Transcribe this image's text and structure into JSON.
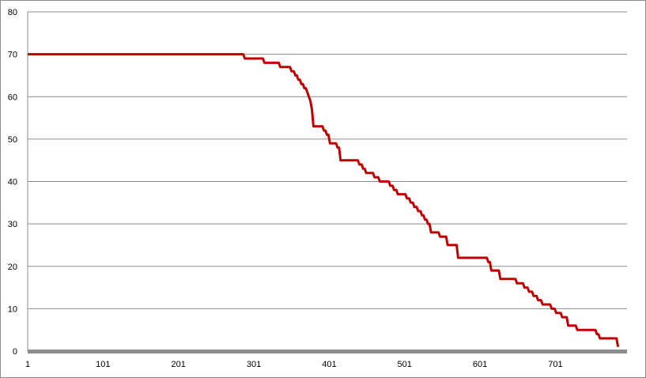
{
  "chart_data": {
    "type": "line",
    "title": "",
    "xlabel": "",
    "ylabel": "",
    "xlim": [
      1,
      796
    ],
    "ylim": [
      0,
      80
    ],
    "y_ticks": [
      "0",
      "10",
      "20",
      "30",
      "40",
      "50",
      "60",
      "70",
      "80"
    ],
    "x_ticks": [
      "1",
      "101",
      "201",
      "301",
      "401",
      "501",
      "601",
      "701"
    ],
    "grid": "horizontal",
    "legend": "none",
    "line_color": "#c00000",
    "series": [
      {
        "x": [
          1,
          287,
          289,
          313,
          315,
          334,
          336,
          349,
          351,
          354,
          356,
          358,
          360,
          362,
          364,
          366,
          368,
          370,
          372,
          374,
          376,
          378,
          380,
          392,
          394,
          396,
          398,
          400,
          402,
          410,
          412,
          414,
          416,
          418,
          420,
          439,
          441,
          444,
          446,
          448,
          450,
          459,
          461,
          466,
          468,
          480,
          482,
          485,
          487,
          490,
          492,
          502,
          504,
          507,
          509,
          512,
          514,
          517,
          519,
          522,
          524,
          526,
          528,
          530,
          532,
          534,
          536,
          546,
          548,
          556,
          558,
          570,
          572,
          610,
          612,
          614,
          616,
          626,
          628,
          648,
          650,
          658,
          660,
          664,
          666,
          670,
          672,
          676,
          678,
          682,
          684,
          694,
          696,
          700,
          702,
          708,
          710,
          716,
          718,
          728,
          730,
          754,
          756,
          758,
          760,
          782,
          784
        ],
        "y": [
          70,
          70,
          69,
          69,
          68,
          68,
          67,
          67,
          66,
          66,
          65,
          65,
          64,
          64,
          63,
          63,
          62,
          62,
          61,
          60,
          59,
          57,
          53,
          53,
          52,
          52,
          51,
          51,
          49,
          49,
          48,
          48,
          45,
          45,
          45,
          45,
          44,
          44,
          43,
          43,
          42,
          42,
          41,
          41,
          40,
          40,
          39,
          39,
          38,
          38,
          37,
          37,
          36,
          36,
          35,
          35,
          34,
          34,
          33,
          33,
          32,
          32,
          31,
          31,
          30,
          30,
          28,
          28,
          27,
          27,
          25,
          25,
          22,
          22,
          21,
          21,
          19,
          19,
          17,
          17,
          16,
          16,
          15,
          15,
          14,
          14,
          13,
          13,
          12,
          12,
          11,
          11,
          10,
          10,
          9,
          9,
          8,
          8,
          6,
          6,
          5,
          5,
          4,
          4,
          3,
          3,
          1
        ]
      }
    ]
  }
}
